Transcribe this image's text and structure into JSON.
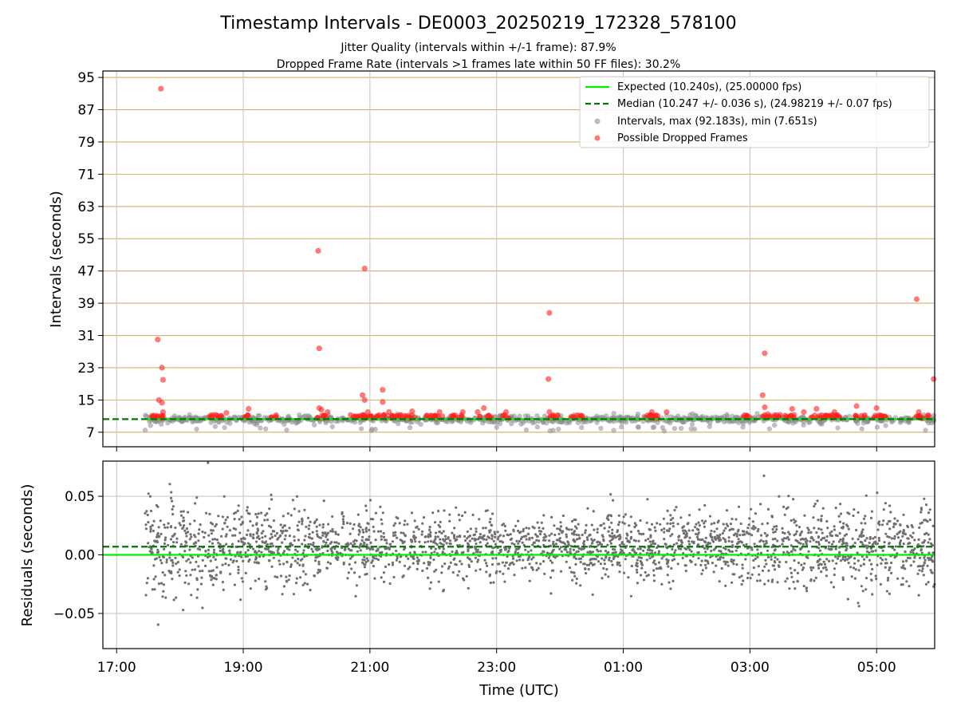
{
  "title": "Timestamp Intervals - DE0003_20250219_172328_578100",
  "subtitle1": "Jitter Quality (intervals within +/-1 frame): 87.9%",
  "subtitle2": "Dropped Frame Rate (intervals >1 frames late within 50 FF files): 30.2%",
  "colors": {
    "expected": "#00ee00",
    "median": "#007700",
    "intervals": "#8c8c8c",
    "dropped": "#ff2020",
    "hgrid_top": "#cdb368",
    "grid": "#c8c8c8",
    "residuals": "#707070"
  },
  "chart_data": [
    {
      "type": "scatter",
      "ylabel": "Intervals (seconds)",
      "ylim": [
        3.4,
        96.6
      ],
      "yticks": [
        "7",
        "15",
        "23",
        "31",
        "39",
        "47",
        "55",
        "63",
        "71",
        "79",
        "87",
        "95"
      ],
      "x_range": [
        "16:47",
        "05:55"
      ],
      "grid": "horizontal gold lines at y ticks, vertical grey lines at x ticks",
      "legend_position": "top-right",
      "legend": [
        "Expected (10.240s), (25.00000 fps)",
        "Median (10.247 +/- 0.036 s), (24.98219 +/- 0.07 fps)",
        "Intervals, max (92.183s), min (7.651s)",
        "Possible Dropped Frames"
      ],
      "expected_interval": 10.24,
      "median_interval": 10.247,
      "interval_max": 92.183,
      "interval_min": 7.651,
      "series_time_range": [
        "17:27",
        "05:55"
      ],
      "dropped_frames_outliers": [
        {
          "x": "17:39",
          "y": 30.0
        },
        {
          "x": "17:40",
          "y": 15.0
        },
        {
          "x": "17:42",
          "y": 92.2
        },
        {
          "x": "17:43",
          "y": 23.0
        },
        {
          "x": "17:44",
          "y": 20.0
        },
        {
          "x": "17:43",
          "y": 14.3
        },
        {
          "x": "17:44",
          "y": 12.0
        },
        {
          "x": "18:44",
          "y": 11.8
        },
        {
          "x": "19:05",
          "y": 12.8
        },
        {
          "x": "20:11",
          "y": 52.0
        },
        {
          "x": "20:12",
          "y": 27.8
        },
        {
          "x": "20:12",
          "y": 13.0
        },
        {
          "x": "20:14",
          "y": 12.6
        },
        {
          "x": "20:20",
          "y": 12.0
        },
        {
          "x": "20:53",
          "y": 16.2
        },
        {
          "x": "20:55",
          "y": 47.6
        },
        {
          "x": "20:55",
          "y": 15.0
        },
        {
          "x": "20:58",
          "y": 12.0
        },
        {
          "x": "21:12",
          "y": 17.5
        },
        {
          "x": "21:12",
          "y": 14.5
        },
        {
          "x": "21:18",
          "y": 12.0
        },
        {
          "x": "21:40",
          "y": 12.2
        },
        {
          "x": "22:06",
          "y": 12.0
        },
        {
          "x": "22:28",
          "y": 12.0
        },
        {
          "x": "22:42",
          "y": 12.0
        },
        {
          "x": "22:48",
          "y": 13.0
        },
        {
          "x": "23:09",
          "y": 12.0
        },
        {
          "x": "23:50",
          "y": 36.6
        },
        {
          "x": "23:49",
          "y": 20.2
        },
        {
          "x": "23:50",
          "y": 12.0
        },
        {
          "x": "01:27",
          "y": 12.0
        },
        {
          "x": "01:41",
          "y": 12.0
        },
        {
          "x": "03:12",
          "y": 16.2
        },
        {
          "x": "03:14",
          "y": 26.6
        },
        {
          "x": "03:14",
          "y": 13.2
        },
        {
          "x": "03:17",
          "y": 11.5
        },
        {
          "x": "03:40",
          "y": 12.8
        },
        {
          "x": "03:51",
          "y": 12.0
        },
        {
          "x": "04:03",
          "y": 12.8
        },
        {
          "x": "04:20",
          "y": 12.0
        },
        {
          "x": "04:41",
          "y": 13.5
        },
        {
          "x": "05:00",
          "y": 13.0
        },
        {
          "x": "05:38",
          "y": 40.0
        },
        {
          "x": "05:40",
          "y": 12.0
        },
        {
          "x": "05:54",
          "y": 20.2
        }
      ],
      "dropped_frame_clusters": [
        [
          "17:33",
          "17:47"
        ],
        [
          "18:27",
          "18:40"
        ],
        [
          "19:01",
          "19:07"
        ],
        [
          "19:26",
          "19:33"
        ],
        [
          "20:10",
          "20:20"
        ],
        [
          "20:38",
          "21:30"
        ],
        [
          "21:32",
          "21:43"
        ],
        [
          "21:53",
          "22:09"
        ],
        [
          "22:17",
          "22:28"
        ],
        [
          "22:44",
          "22:55"
        ],
        [
          "23:05",
          "23:12"
        ],
        [
          "23:50",
          "24:00"
        ],
        [
          "24:10",
          "24:22"
        ],
        [
          "25:20",
          "25:35"
        ],
        [
          "26:52",
          "27:00"
        ],
        [
          "27:12",
          "27:30"
        ],
        [
          "27:33",
          "27:45"
        ],
        [
          "27:55",
          "28:25"
        ],
        [
          "28:40",
          "28:50"
        ],
        [
          "28:57",
          "29:10"
        ],
        [
          "29:36",
          "29:50"
        ]
      ]
    },
    {
      "type": "scatter",
      "xlabel": "Time (UTC)",
      "ylabel": "Residuals (seconds)",
      "ylim": [
        -0.08,
        0.08
      ],
      "yticks": [
        "−0.05",
        "0.00",
        "0.05"
      ],
      "xticks": [
        "17:00",
        "19:00",
        "21:00",
        "23:00",
        "01:00",
        "03:00",
        "05:00"
      ],
      "x_range": [
        "16:47",
        "05:55"
      ],
      "grid": true,
      "expected_residual": 0.0,
      "median_residual": 0.007,
      "residual_spread_sd": 0.018
    }
  ]
}
